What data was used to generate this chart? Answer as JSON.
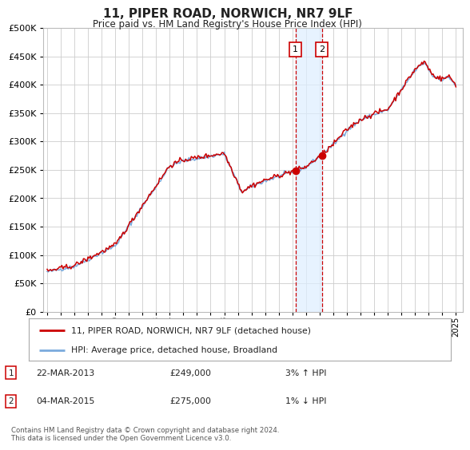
{
  "title": "11, PIPER ROAD, NORWICH, NR7 9LF",
  "subtitle": "Price paid vs. HM Land Registry's House Price Index (HPI)",
  "legend_line1": "11, PIPER ROAD, NORWICH, NR7 9LF (detached house)",
  "legend_line2": "HPI: Average price, detached house, Broadland",
  "transaction1_date": "22-MAR-2013",
  "transaction1_price": "£249,000",
  "transaction1_hpi": "3% ↑ HPI",
  "transaction1_year": 2013.22,
  "transaction1_value": 249000,
  "transaction2_date": "04-MAR-2015",
  "transaction2_price": "£275,000",
  "transaction2_hpi": "1% ↓ HPI",
  "transaction2_year": 2015.17,
  "transaction2_value": 275000,
  "footer": "Contains HM Land Registry data © Crown copyright and database right 2024.\nThis data is licensed under the Open Government Licence v3.0.",
  "line_color_red": "#cc0000",
  "line_color_blue": "#7aaadd",
  "background_color": "#ffffff",
  "grid_color": "#cccccc",
  "highlight_color": "#ddeeff",
  "ylim": [
    0,
    500000
  ],
  "yticks": [
    0,
    50000,
    100000,
    150000,
    200000,
    250000,
    300000,
    350000,
    400000,
    450000,
    500000
  ],
  "xlim_start": 1994.7,
  "xlim_end": 2025.5,
  "xticks": [
    1995,
    1996,
    1997,
    1998,
    1999,
    2000,
    2001,
    2002,
    2003,
    2004,
    2005,
    2006,
    2007,
    2008,
    2009,
    2010,
    2011,
    2012,
    2013,
    2014,
    2015,
    2016,
    2017,
    2018,
    2019,
    2020,
    2021,
    2022,
    2023,
    2024,
    2025
  ]
}
